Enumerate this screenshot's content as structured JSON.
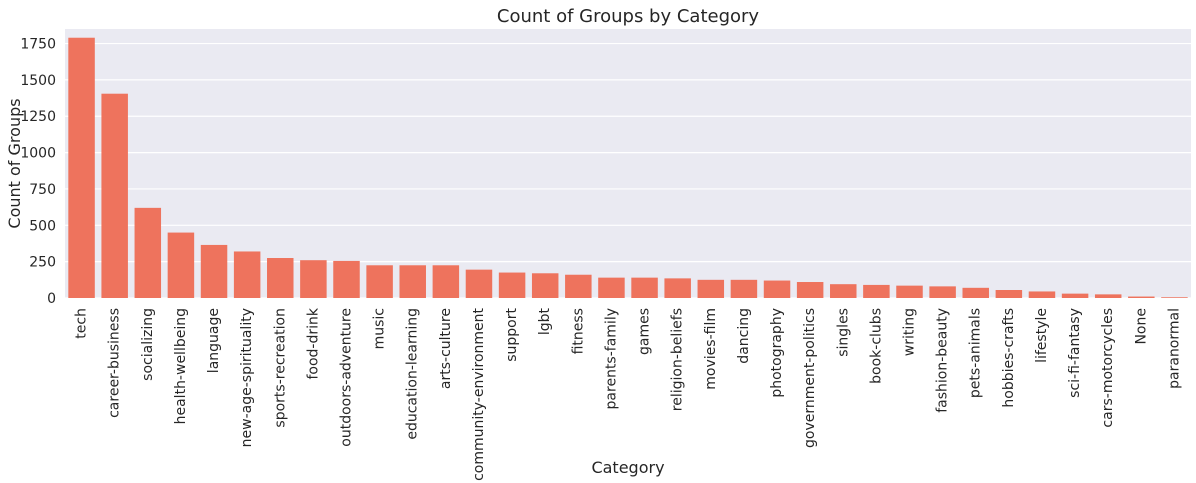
{
  "chart_data": {
    "type": "bar",
    "title": "Count of Groups by Category",
    "xlabel": "Category",
    "ylabel": "Count of Groups",
    "ylim": [
      0,
      1850
    ],
    "yticks": [
      0,
      250,
      500,
      750,
      1000,
      1250,
      1500,
      1750
    ],
    "grid": true,
    "bar_color": "#ee735d",
    "background_color": "#eaeaf2",
    "categories": [
      "tech",
      "career-business",
      "socializing",
      "health-wellbeing",
      "language",
      "new-age-spirituality",
      "sports-recreation",
      "food-drink",
      "outdoors-adventure",
      "music",
      "education-learning",
      "arts-culture",
      "community-environment",
      "support",
      "lgbt",
      "fitness",
      "parents-family",
      "games",
      "religion-beliefs",
      "movies-film",
      "dancing",
      "photography",
      "government-politics",
      "singles",
      "book-clubs",
      "writing",
      "fashion-beauty",
      "pets-animals",
      "hobbies-crafts",
      "lifestyle",
      "sci-fi-fantasy",
      "cars-motorcycles",
      "None",
      "paranormal"
    ],
    "values": [
      1790,
      1405,
      620,
      450,
      365,
      320,
      275,
      260,
      255,
      225,
      225,
      225,
      195,
      175,
      170,
      160,
      140,
      140,
      135,
      125,
      125,
      120,
      110,
      95,
      90,
      85,
      80,
      70,
      55,
      45,
      30,
      25,
      10,
      5
    ]
  }
}
